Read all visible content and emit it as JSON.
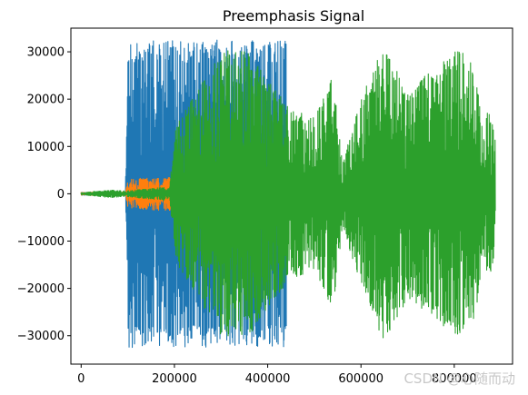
{
  "chart_data": {
    "type": "line",
    "title": "Preemphasis Signal",
    "xlabel": "",
    "ylabel": "",
    "xlim": [
      -22000,
      925000
    ],
    "ylim": [
      -36000,
      35000
    ],
    "x_ticks": [
      0,
      200000,
      400000,
      600000,
      800000
    ],
    "x_tick_labels": [
      "0",
      "200000",
      "400000",
      "600000",
      "800000"
    ],
    "y_ticks": [
      -30000,
      -20000,
      -10000,
      0,
      10000,
      20000,
      30000
    ],
    "y_tick_labels": [
      "−30000",
      "−20000",
      "−10000",
      "0",
      "10000",
      "20000",
      "30000"
    ],
    "grid": false,
    "legend": "none",
    "series": [
      {
        "color": "#1f77b4",
        "x_range": [
          0,
          440000
        ],
        "envelope_breakpoints_x": [
          0,
          95000,
          99000,
          200000,
          260000,
          330000,
          440000
        ],
        "envelope_breakpoints_amp": [
          300,
          300,
          32500,
          32500,
          32500,
          32500,
          32500
        ]
      },
      {
        "color": "#ff7f0e",
        "x_range": [
          0,
          195000
        ],
        "envelope_breakpoints_x": [
          0,
          95000,
          100000,
          150000,
          195000
        ],
        "envelope_breakpoints_amp": [
          300,
          400,
          3000,
          3500,
          3500
        ]
      },
      {
        "color": "#2ca02c",
        "x_range": [
          0,
          888000
        ],
        "envelope_breakpoints_x": [
          0,
          20000,
          60000,
          95000,
          190000,
          200000,
          250000,
          300000,
          320000,
          360000,
          400000,
          450000,
          500000,
          540000,
          560000,
          600000,
          650000,
          700000,
          750000,
          800000,
          830000,
          860000,
          888000
        ],
        "envelope_breakpoints_amp": [
          200,
          400,
          800,
          600,
          1500,
          14000,
          22000,
          30000,
          31000,
          30000,
          24000,
          18000,
          16000,
          25000,
          7000,
          20000,
          32000,
          22000,
          26000,
          30000,
          30500,
          19000,
          15000
        ]
      }
    ]
  },
  "watermark": "CSDN @心随而动"
}
